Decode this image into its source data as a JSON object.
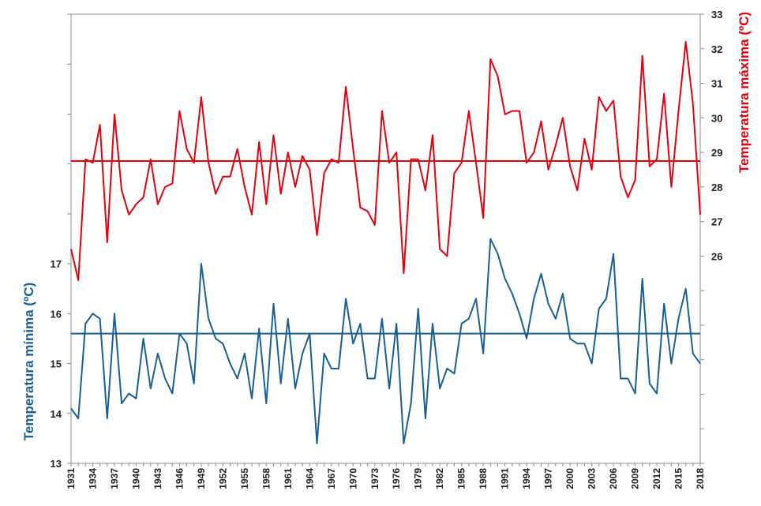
{
  "chart_data": {
    "type": "line",
    "x_start": 1931,
    "x_end": 2018,
    "xticks": [
      "1931",
      "1934",
      "1937",
      "1940",
      "1943",
      "1946",
      "1949",
      "1952",
      "1955",
      "1958",
      "1961",
      "1964",
      "1967",
      "1970",
      "1973",
      "1976",
      "1979",
      "1982",
      "1985",
      "1988",
      "1991",
      "1994",
      "1997",
      "2000",
      "2003",
      "2006",
      "2009",
      "2012",
      "2015",
      "2018"
    ],
    "left_axis": {
      "title": "Temperatura mínima (ºC)",
      "ticks": [
        "13",
        "14",
        "15",
        "16",
        "17"
      ],
      "range": [
        13,
        22
      ]
    },
    "right_axis": {
      "title": "Temperatura máxima (ºC)",
      "ticks": [
        "26",
        "27",
        "28",
        "29",
        "30",
        "31",
        "32",
        "33"
      ],
      "range": [
        20,
        33
      ]
    },
    "colors": {
      "max": "#e3000f",
      "min": "#1a5f91"
    },
    "max_mean": 28.75,
    "min_mean": 15.6,
    "series": [
      {
        "axis": "right",
        "values": [
          26.2,
          25.3,
          28.8,
          28.7,
          29.8,
          26.4,
          30.1,
          27.9,
          27.2,
          27.5,
          27.7,
          28.8,
          27.5,
          28.0,
          28.1,
          30.2,
          29.1,
          28.7,
          30.6,
          28.7,
          27.8,
          28.3,
          28.3,
          29.1,
          28.0,
          27.2,
          29.3,
          27.5,
          29.5,
          27.8,
          29.0,
          28.0,
          28.9,
          28.5,
          26.6,
          28.4,
          28.8,
          28.7,
          30.9,
          29.1,
          27.4,
          27.3,
          26.9,
          30.2,
          28.7,
          29.0,
          25.5,
          28.8,
          28.8,
          27.9,
          29.5,
          26.2,
          26.0,
          28.4,
          28.7,
          30.2,
          28.7,
          27.1,
          31.7,
          31.2,
          30.1,
          30.2,
          30.2,
          28.7,
          29.0,
          29.9,
          28.5,
          29.2,
          30.0,
          28.6,
          27.9,
          29.4,
          28.5,
          30.6,
          30.2,
          30.5,
          28.3,
          27.7,
          28.2,
          31.8,
          28.6,
          28.8,
          30.7,
          28.0,
          30.2,
          32.2,
          30.4,
          27.2
        ]
      },
      {
        "axis": "left",
        "values": [
          14.1,
          13.9,
          15.8,
          16.0,
          15.9,
          13.9,
          16.0,
          14.2,
          14.4,
          14.3,
          15.5,
          14.5,
          15.2,
          14.7,
          14.4,
          15.6,
          15.4,
          14.6,
          17.0,
          15.9,
          15.5,
          15.4,
          15.0,
          14.7,
          15.2,
          14.3,
          15.7,
          14.2,
          16.2,
          14.6,
          15.9,
          14.5,
          15.2,
          15.6,
          13.4,
          15.2,
          14.9,
          14.9,
          16.3,
          15.4,
          15.8,
          14.7,
          14.7,
          15.9,
          14.5,
          15.8,
          13.4,
          14.2,
          16.1,
          13.9,
          15.8,
          14.5,
          14.9,
          14.8,
          15.8,
          15.9,
          16.3,
          15.2,
          17.5,
          17.2,
          16.7,
          16.4,
          16.0,
          15.5,
          16.3,
          16.8,
          16.2,
          15.9,
          16.4,
          15.5,
          15.4,
          15.4,
          15.0,
          16.1,
          16.3,
          17.2,
          14.7,
          14.7,
          14.4,
          16.7,
          14.6,
          14.4,
          16.2,
          15.0,
          15.9,
          16.5,
          15.2,
          15.0
        ]
      }
    ]
  }
}
